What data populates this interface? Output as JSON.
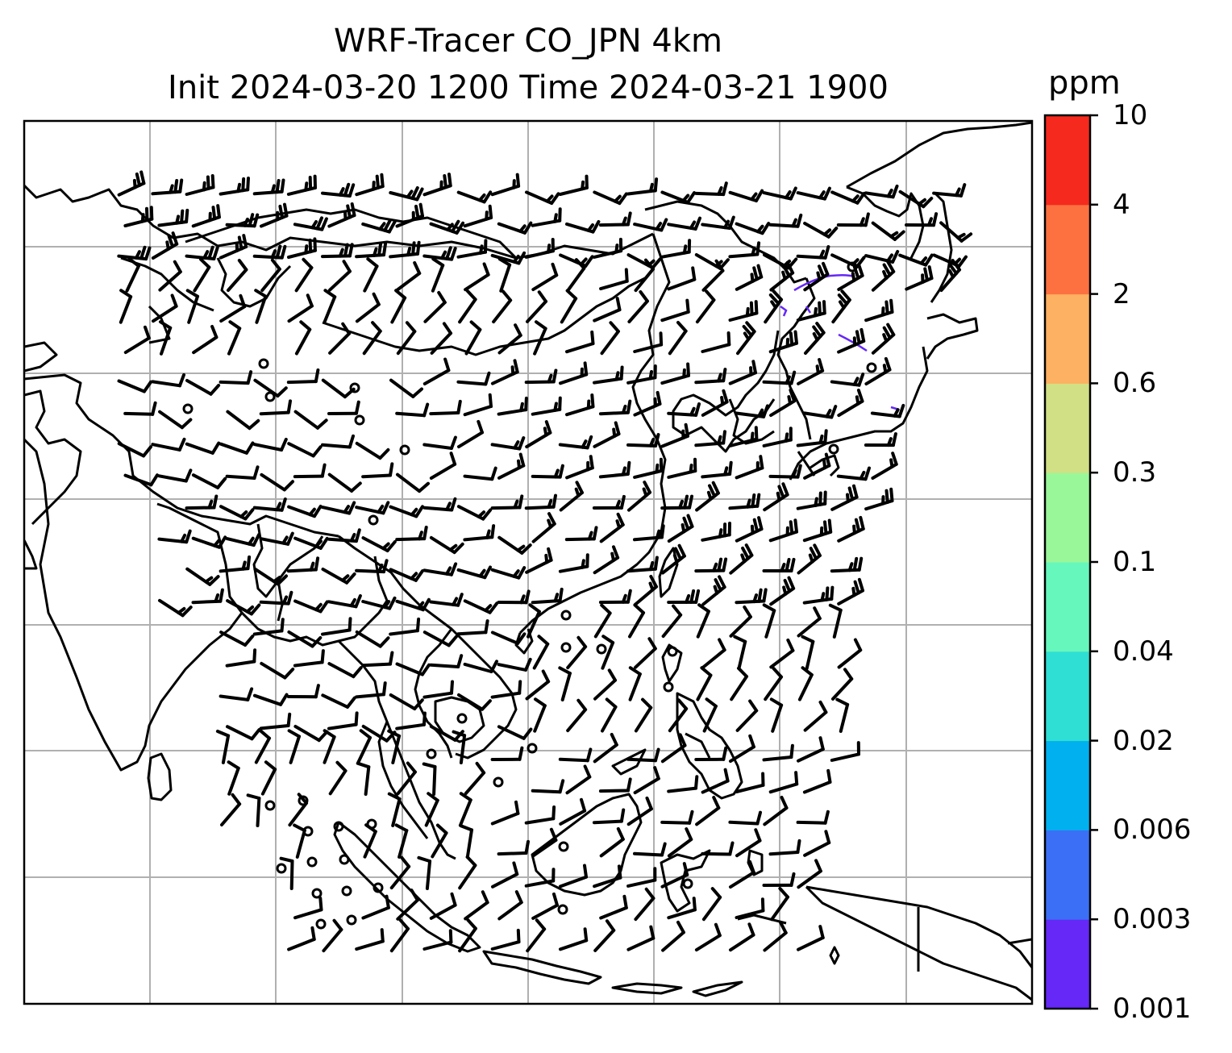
{
  "title": {
    "line1": "WRF-Tracer CO_JPN 4km",
    "line2": "Init 2024-03-20 1200 Time 2024-03-21 1900"
  },
  "colorbar": {
    "unit": "ppm",
    "levels": [
      "0.001",
      "0.003",
      "0.006",
      "0.02",
      "0.04",
      "0.1",
      "0.3",
      "0.6",
      "2",
      "4",
      "10"
    ],
    "colors": [
      "#6528f7",
      "#3b6ff5",
      "#00b0ef",
      "#2fdfd3",
      "#66f7bd",
      "#99f799",
      "#d1e085",
      "#fdb162",
      "#fd7141",
      "#f5291d"
    ]
  },
  "map": {
    "gridlines": true,
    "wind_barbs": "black",
    "tracer_color": "#6528f7"
  }
}
